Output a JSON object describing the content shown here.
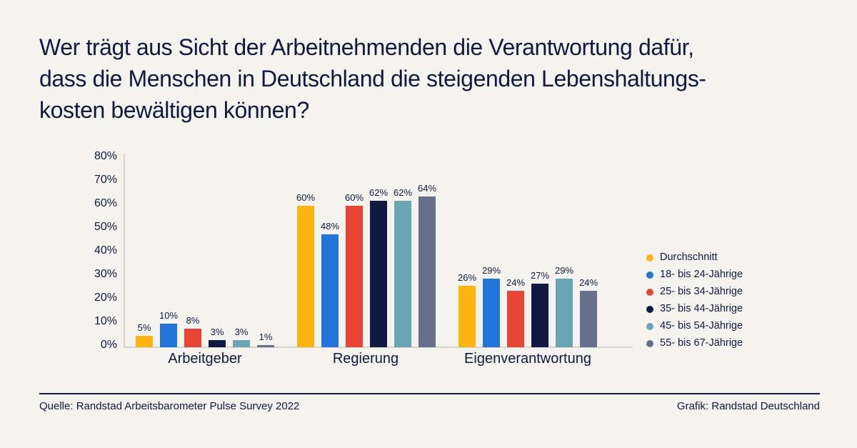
{
  "header": {
    "title_lines": [
      "Wer trägt aus Sicht der Arbeitnehmenden die Verantwortung dafür,",
      "dass die Menschen in Deutschland die steigenden Lebenshaltungs-",
      "kosten bewältigen können?"
    ]
  },
  "chart_data": {
    "type": "bar",
    "title": "Wer trägt aus Sicht der Arbeitnehmenden die Verantwortung dafür, dass die Menschen in Deutschland die steigenden Lebenshaltungskosten bewältigen können?",
    "categories": [
      "Arbeitgeber",
      "Regierung",
      "Eigenverantwortung"
    ],
    "series": [
      {
        "name": "Durchschnitt",
        "color": "#FFB511",
        "values": [
          5,
          60,
          26
        ]
      },
      {
        "name": "18- bis 24-Jährige",
        "color": "#2175D9",
        "values": [
          10,
          48,
          29
        ]
      },
      {
        "name": "25- bis 34-Jährige",
        "color": "#E74536",
        "values": [
          8,
          60,
          24
        ]
      },
      {
        "name": "35- bis 44-Jährige",
        "color": "#0F1941",
        "values": [
          3,
          62,
          27
        ]
      },
      {
        "name": "45- bis 54-Jährige",
        "color": "#6BA5B4",
        "values": [
          3,
          62,
          29
        ]
      },
      {
        "name": "55- bis 67-Jährige",
        "color": "#66708D",
        "values": [
          1,
          64,
          24
        ]
      }
    ],
    "value_suffix": "%",
    "ylim": [
      0,
      80
    ],
    "ytick_step": 10,
    "yticks": [
      "80%",
      "70%",
      "60%",
      "50%",
      "40%",
      "30%",
      "20%",
      "10%",
      "0%"
    ],
    "grid": false,
    "legend_position": "right"
  },
  "footer": {
    "source": "Quelle: Randstad Arbeitsbarometer Pulse Survey 2022",
    "credit": "Grafik: Randstad Deutschland"
  },
  "colors": {
    "background": "#F5F3EE",
    "text": "#0F1941",
    "axis": "#D8D6D0"
  }
}
